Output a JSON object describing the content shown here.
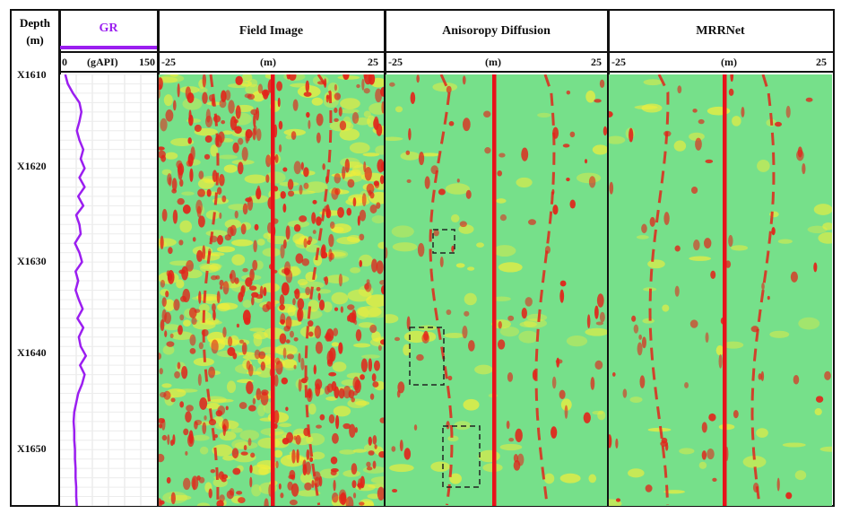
{
  "columns": {
    "depth": {
      "title": "Depth",
      "unit": "(m)"
    },
    "gr": {
      "title": "GR",
      "unit": "(gAPI)",
      "min_label": "0",
      "max_label": "150",
      "color": "#9b1ef0"
    },
    "field": {
      "title": "Field Image",
      "left": "-25",
      "unit": "(m)",
      "right": "25"
    },
    "aniso": {
      "title": "Anisoropy Diffusion",
      "left": "-25",
      "unit": "(m)",
      "right": "25"
    },
    "mrr": {
      "title": "MRRNet",
      "left": "-25",
      "unit": "(m)",
      "right": "25"
    }
  },
  "depth_ticks": [
    "X1610",
    "X1620",
    "X1630",
    "X1640",
    "X1650"
  ],
  "colors": {
    "background": "#76e08a",
    "high": "#e2241a",
    "mid": "#f2ee3a",
    "line": "#e8121a",
    "box": "#222222"
  },
  "chart_data": {
    "type": "line",
    "title": "GR",
    "xlabel": "(gAPI)",
    "ylabel": "Depth (m)",
    "xlim": [
      0,
      150
    ],
    "ylim": [
      1609,
      1655
    ],
    "grid": true,
    "series": [
      {
        "name": "GR",
        "depth": [
          1609,
          1610,
          1611,
          1612,
          1613,
          1614,
          1615,
          1616,
          1617,
          1618,
          1619,
          1620,
          1621,
          1622,
          1623,
          1624,
          1625,
          1626,
          1627,
          1628,
          1629,
          1630,
          1631,
          1632,
          1633,
          1634,
          1635,
          1636,
          1637,
          1638,
          1639,
          1640,
          1641,
          1642,
          1643,
          1644,
          1645,
          1646,
          1647,
          1648,
          1649,
          1650,
          1651,
          1652,
          1653,
          1654,
          1655
        ],
        "values": [
          8,
          12,
          20,
          30,
          33,
          30,
          26,
          30,
          36,
          32,
          38,
          30,
          38,
          28,
          36,
          25,
          30,
          32,
          23,
          30,
          34,
          24,
          28,
          24,
          29,
          35,
          27,
          36,
          29,
          32,
          40,
          31,
          38,
          34,
          28,
          25,
          22,
          21,
          22,
          22,
          23,
          23,
          24,
          24,
          25,
          25,
          26
        ]
      }
    ]
  }
}
